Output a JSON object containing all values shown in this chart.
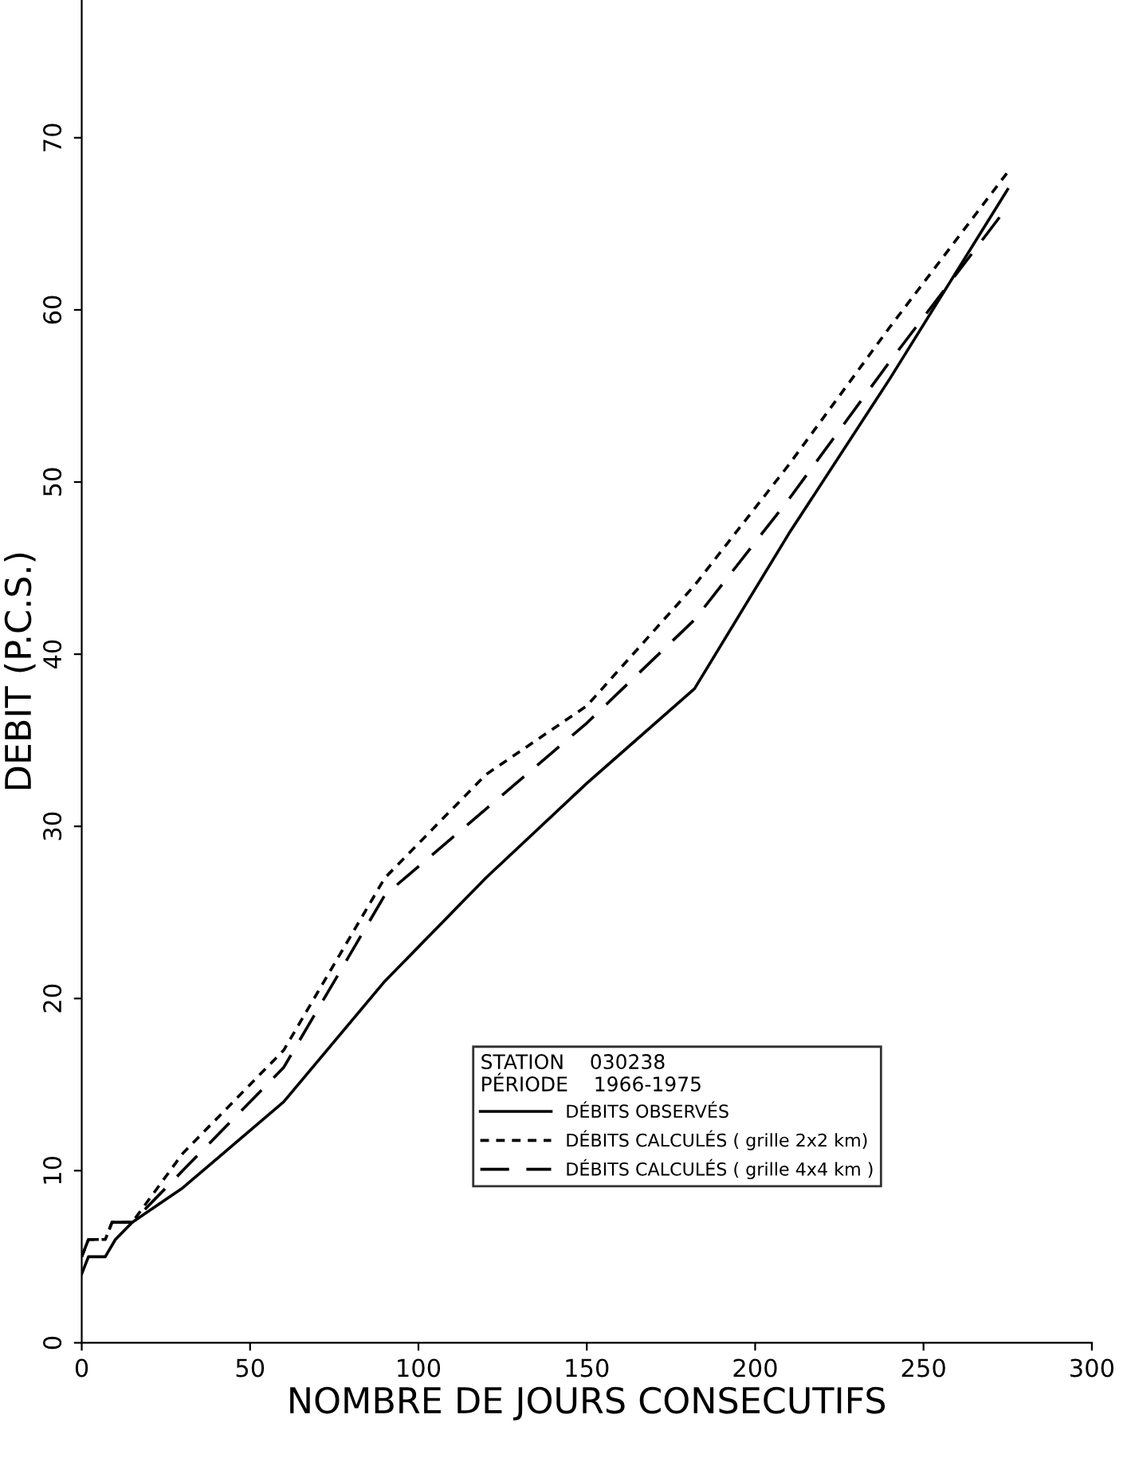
{
  "chart_data": {
    "type": "line",
    "xlabel": "NOMBRE DE JOURS CONSECUTIFS",
    "ylabel": "DEBIT (P.C.S.)",
    "legend_title": "STATION    030238\nPÉRIODE    1966-1975",
    "xlim": [
      0,
      300
    ],
    "xticks": [
      0,
      50,
      100,
      150,
      200,
      250,
      300
    ],
    "ylim": [
      0,
      78
    ],
    "yticks": [
      0,
      10,
      20,
      30,
      40,
      50,
      60,
      70
    ],
    "grid": false,
    "legend": "bottom right",
    "marker": "none",
    "series": [
      {
        "name": "DÉBITS OBSERVÉS",
        "color": "#000000",
        "line_style": "solid",
        "x": [
          0,
          2,
          7,
          10,
          15,
          30,
          60,
          90,
          120,
          150,
          182,
          210,
          240,
          275
        ],
        "values": [
          4,
          5,
          5,
          6,
          7,
          9,
          14,
          21,
          27,
          32.5,
          38,
          47,
          56,
          67
        ]
      },
      {
        "name": "DÉBITS CALCULÉS ( grille 2x2 km)",
        "color": "#000000",
        "line_style": "dotted",
        "x": [
          0,
          2,
          7,
          9,
          15,
          30,
          60,
          90,
          120,
          150,
          182,
          210,
          240,
          275
        ],
        "values": [
          5,
          6,
          6,
          7,
          7,
          11,
          17,
          27,
          33,
          37,
          44,
          51,
          59,
          68
        ]
      },
      {
        "name": "DÉBITS CALCULÉS ( grille 4x4 km )",
        "color": "#000000",
        "line_style": "dashed",
        "x": [
          0,
          2,
          7,
          9,
          15,
          30,
          60,
          90,
          120,
          150,
          182,
          210,
          240,
          275
        ],
        "values": [
          5,
          6,
          6,
          7,
          7,
          10,
          16,
          26,
          31,
          36,
          42,
          49,
          57,
          66
        ]
      }
    ]
  }
}
